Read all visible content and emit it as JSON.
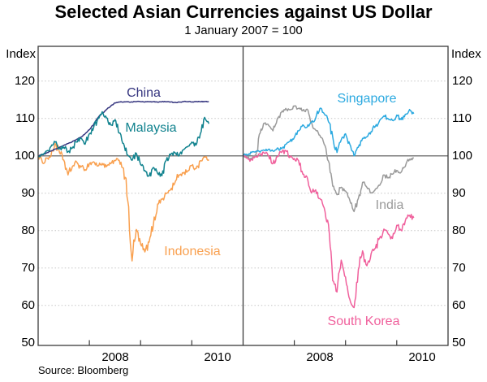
{
  "chart_data": {
    "type": "line",
    "title": "Selected Asian Currencies against US Dollar",
    "subtitle": "1 January 2007 = 100",
    "unit_label": "Index",
    "source": "Source: Bloomberg",
    "x_start_month": "2007-01",
    "x_months": 41,
    "x_year_tick_offsets": [
      1,
      2,
      3
    ],
    "x_year_labels": [
      "2008",
      "2010"
    ],
    "x_year_label_offsets": [
      1.5,
      3.5
    ],
    "ylim": [
      49.3,
      129.3
    ],
    "yticks": [
      120,
      110,
      100,
      90,
      80,
      70,
      60,
      50
    ],
    "baseline_value": 100,
    "grid_color": "#c6c6c6",
    "baseline_color": "#7d7d7d",
    "frame_color": "#3a3a3a",
    "panels": [
      {
        "name": "left",
        "series": [
          {
            "name": "Indonesia",
            "color": "#F9A04F",
            "noise": 0.6,
            "values": [
              100,
              98.2,
              99.4,
              99.9,
              103.3,
              100.9,
              98.9,
              94.9,
              97.1,
              98.4,
              97.0,
              96.3,
              97.9,
              98.4,
              97.3,
              98.0,
              97.1,
              97.9,
              98.7,
              98.8,
              96.7,
              88.0,
              71.9,
              80.3,
              76.4,
              74.3,
              76.9,
              81.6,
              87.1,
              88.4,
              89.9,
              90.9,
              92.7,
              94.9,
              95.4,
              96.0,
              97.4,
              96.6,
              98.7,
              99.7,
              99.0
            ]
          },
          {
            "name": "China",
            "color": "#35357F",
            "noise": 0.12,
            "values": [
              100,
              100.4,
              100.8,
              101.3,
              101.8,
              102.3,
              102.8,
              103.3,
              103.8,
              104.4,
              105.0,
              105.9,
              107.0,
              108.4,
              110.2,
              111.4,
              112.4,
              113.3,
              114.2,
              114.4,
              114.4,
              114.5,
              114.4,
              114.5,
              114.5,
              114.4,
              114.5,
              114.5,
              114.4,
              114.5,
              114.5,
              114.4,
              114.3,
              114.4,
              114.5,
              114.5,
              114.4,
              114.5,
              114.5,
              114.5,
              114.5
            ]
          },
          {
            "name": "Malaysia",
            "color": "#10828E",
            "noise": 0.5,
            "values": [
              100,
              100.4,
              101.3,
              102.5,
              103.7,
              101.9,
              102.3,
              101.1,
              102.1,
              103.7,
              104.7,
              103.1,
              105.9,
              107.6,
              110.1,
              111.8,
              110.2,
              108.3,
              109.7,
              106.1,
              103.3,
              100.2,
              98.8,
              100.7,
              97.7,
              96.1,
              94.6,
              96.9,
              95.3,
              94.7,
              98.8,
              100.3,
              100.9,
              100.0,
              101.6,
              102.4,
              103.7,
              102.9,
              105.9,
              110.3,
              108.6
            ]
          }
        ]
      },
      {
        "name": "right",
        "series": [
          {
            "name": "India",
            "color": "#9A9A9A",
            "noise": 0.45,
            "values": [
              100,
              99.6,
              99.3,
              100.3,
              106.1,
              108.7,
              108.1,
              106.7,
              109.9,
              111.7,
              112.7,
              112.3,
              113.3,
              112.7,
              112.1,
              112.5,
              109.1,
              106.9,
              105.5,
              103.1,
              98.6,
              91.9,
              89.6,
              91.6,
              90.6,
              88.1,
              85.1,
              88.6,
              92.9,
              91.6,
              90.1,
              91.1,
              92.1,
              94.9,
              94.1,
              95.1,
              96.1,
              95.6,
              97.1,
              99.1,
              99.4
            ]
          },
          {
            "name": "South Korea",
            "color": "#F0609C",
            "noise": 0.55,
            "values": [
              100,
              99.4,
              99.0,
              99.9,
              100.4,
              100.7,
              99.9,
              97.9,
              99.8,
              100.9,
              101.4,
              99.7,
              99.3,
              98.7,
              95.1,
              94.3,
              90.1,
              90.9,
              88.6,
              86.1,
              81.6,
              66.6,
              63.6,
              72.1,
              67.6,
              61.6,
              59.4,
              69.6,
              74.6,
              70.6,
              73.9,
              75.3,
              78.1,
              80.4,
              79.1,
              77.9,
              81.4,
              80.1,
              82.6,
              84.1,
              83.4
            ]
          },
          {
            "name": "Singapore",
            "color": "#2BA9E0",
            "noise": 0.45,
            "values": [
              100,
              100.3,
              100.9,
              101.2,
              101.0,
              101.5,
              101.8,
              101.3,
              102.1,
              101.9,
              103.1,
              103.9,
              104.9,
              106.7,
              108.3,
              107.7,
              108.9,
              110.1,
              112.7,
              111.3,
              109.1,
              105.1,
              100.9,
              104.3,
              105.9,
              103.1,
              100.0,
              102.3,
              104.7,
              105.1,
              106.5,
              107.9,
              109.5,
              110.7,
              109.9,
              109.5,
              110.9,
              109.7,
              111.1,
              112.4,
              111.3
            ]
          }
        ]
      }
    ]
  }
}
